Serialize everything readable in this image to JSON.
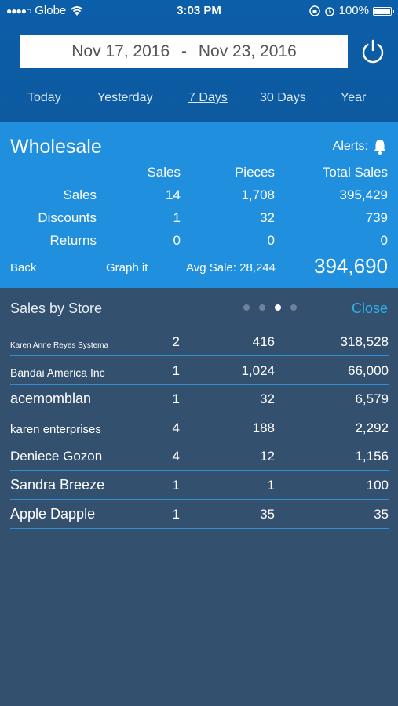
{
  "status_bar": {
    "carrier": "Globe",
    "time": "3:03 PM",
    "battery": "100%"
  },
  "date_range": {
    "start": "Nov 17, 2016",
    "separator": "-",
    "end": "Nov 23, 2016"
  },
  "ranges": [
    "Today",
    "Yesterday",
    "7 Days",
    "30 Days",
    "Year"
  ],
  "active_range": "7 Days",
  "summary": {
    "title": "Wholesale",
    "alerts_label": "Alerts:",
    "columns": [
      "Sales",
      "Pieces",
      "Total Sales"
    ],
    "rows": [
      {
        "label": "Sales",
        "values": [
          "14",
          "1,708",
          "395,429"
        ]
      },
      {
        "label": "Discounts",
        "values": [
          "1",
          "32",
          "739"
        ]
      },
      {
        "label": "Returns",
        "values": [
          "0",
          "0",
          "0"
        ]
      }
    ],
    "back_label": "Back",
    "graph_label": "Graph it",
    "avg_sale": "Avg Sale: 28,244",
    "total": "394,690"
  },
  "stores": {
    "title": "Sales by Store",
    "close_label": "Close",
    "active_page": 3,
    "rows": [
      {
        "name": "Karen Anne Reyes Systema",
        "sales": "2",
        "pieces": "416",
        "total": "318,528"
      },
      {
        "name": "Bandai America Inc",
        "sales": "1",
        "pieces": "1,024",
        "total": "66,000"
      },
      {
        "name": "acemomblan",
        "sales": "1",
        "pieces": "32",
        "total": "6,579"
      },
      {
        "name": "karen enterprises",
        "sales": "4",
        "pieces": "188",
        "total": "2,292"
      },
      {
        "name": "Deniece Gozon",
        "sales": "4",
        "pieces": "12",
        "total": "1,156"
      },
      {
        "name": "Sandra Breeze",
        "sales": "1",
        "pieces": "1",
        "total": "100"
      },
      {
        "name": "Apple Dapple",
        "sales": "1",
        "pieces": "35",
        "total": "35"
      }
    ]
  }
}
